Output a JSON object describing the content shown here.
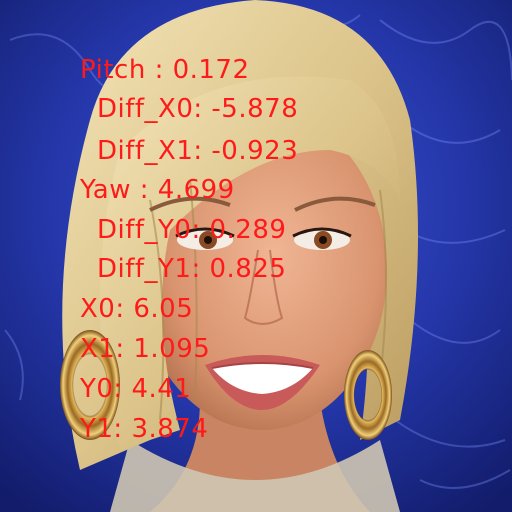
{
  "image": {
    "subject": "portrait-photo",
    "colors": {
      "background": "#1f2f9a",
      "overlay_text": "#ff1a1a",
      "hair": "#e8d49a",
      "skin": "#d99a78"
    }
  },
  "overlay": {
    "pitch": "Pitch : 0.172",
    "diff_x0": "Diff_X0: -5.878",
    "diff_x1": "Diff_X1: -0.923",
    "yaw": "Yaw : 4.699",
    "diff_y0": "Diff_Y0: 0.289",
    "diff_y1": "Diff_Y1: 0.825",
    "x0": "X0: 6.05",
    "x1": "X1: 1.095",
    "y0": "Y0: 4.41",
    "y1": "Y1: 3.874"
  }
}
